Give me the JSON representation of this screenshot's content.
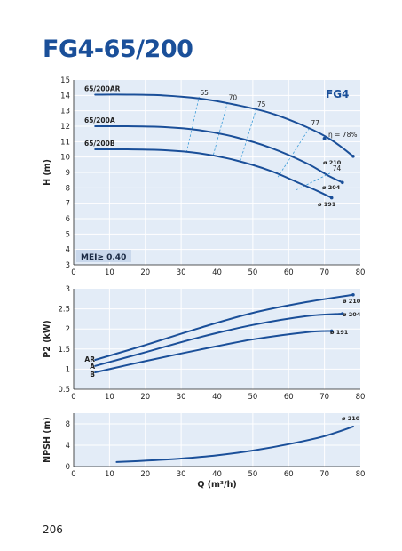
{
  "title": "FG4-65/200",
  "page_number": "206",
  "colors": {
    "title": "#1a4f99",
    "curve": "#1a4f99",
    "efficiency": "#3a9bd8",
    "panel_bg": "#e3ecf7",
    "grid": "#ffffff"
  },
  "chart_data": [
    {
      "type": "line",
      "name": "head",
      "panel_label": "FG4",
      "badge": "MEI≥ 0.40",
      "ylabel": "H (m)",
      "xlim": [
        0,
        80
      ],
      "ylim": [
        3,
        15
      ],
      "x_ticks": [
        0,
        10,
        20,
        30,
        40,
        50,
        60,
        70,
        80
      ],
      "y_ticks": [
        3,
        4,
        5,
        6,
        7,
        8,
        9,
        10,
        11,
        12,
        13,
        14,
        15
      ],
      "series": [
        {
          "name": "65/200AR",
          "end_label": "ø 210",
          "x": [
            6,
            15,
            25,
            35,
            45,
            55,
            65,
            72,
            78
          ],
          "y": [
            14.05,
            14.05,
            14.0,
            13.8,
            13.4,
            12.85,
            11.95,
            11.1,
            10.05
          ]
        },
        {
          "name": "65/200A",
          "end_label": "ø 204",
          "x": [
            6,
            15,
            25,
            35,
            45,
            55,
            65,
            71,
            75
          ],
          "y": [
            12.0,
            12.0,
            11.95,
            11.75,
            11.3,
            10.6,
            9.6,
            8.8,
            8.35
          ]
        },
        {
          "name": "65/200B",
          "end_label": "ø 191",
          "x": [
            6,
            15,
            25,
            35,
            45,
            55,
            63,
            68,
            72
          ],
          "y": [
            10.5,
            10.5,
            10.45,
            10.25,
            9.8,
            9.1,
            8.3,
            7.8,
            7.35
          ]
        }
      ],
      "efficiency": [
        {
          "label": "65",
          "x": [
            31.5,
            35
          ],
          "y": [
            10.3,
            13.9
          ]
        },
        {
          "label": "70",
          "x": [
            39,
            43
          ],
          "y": [
            10.15,
            13.6
          ]
        },
        {
          "label": "75",
          "x": [
            46.5,
            51
          ],
          "y": [
            9.75,
            13.15
          ]
        },
        {
          "label": "77",
          "x": [
            57,
            66
          ],
          "y": [
            8.7,
            11.95
          ]
        },
        {
          "label": "74",
          "x": [
            62,
            72
          ],
          "y": [
            7.85,
            9.0
          ]
        }
      ],
      "eta_label": "η = 78%",
      "eta_point": [
        70,
        11.2
      ]
    },
    {
      "type": "line",
      "name": "power",
      "ylabel": "P2 (kW)",
      "xlim": [
        0,
        80
      ],
      "ylim": [
        0.5,
        3
      ],
      "x_ticks": [
        0,
        10,
        20,
        30,
        40,
        50,
        60,
        70,
        80
      ],
      "y_ticks": [
        0.5,
        1,
        1.5,
        2,
        2.5,
        3
      ],
      "y_tick_labels": [
        "0.5",
        "1",
        "1.5",
        "2",
        "2.5",
        "3"
      ],
      "series": [
        {
          "name": "AR",
          "end_label": "ø 210",
          "x": [
            6,
            20,
            35,
            50,
            65,
            78
          ],
          "y": [
            1.23,
            1.6,
            2.02,
            2.4,
            2.67,
            2.85
          ]
        },
        {
          "name": "A",
          "end_label": "ø 204",
          "x": [
            6,
            20,
            35,
            50,
            65,
            75
          ],
          "y": [
            1.08,
            1.42,
            1.79,
            2.1,
            2.32,
            2.38
          ]
        },
        {
          "name": "B",
          "end_label": "ø 191",
          "x": [
            6,
            20,
            35,
            50,
            65,
            72
          ],
          "y": [
            0.92,
            1.2,
            1.48,
            1.74,
            1.92,
            1.95
          ]
        }
      ]
    },
    {
      "type": "line",
      "name": "npsh",
      "ylabel": "NPSH (m)",
      "xlabel": "Q (m³/h)",
      "xlim": [
        0,
        80
      ],
      "ylim": [
        0,
        10
      ],
      "x_ticks": [
        0,
        10,
        20,
        30,
        40,
        50,
        60,
        70,
        80
      ],
      "y_ticks": [
        0,
        4,
        8
      ],
      "series": [
        {
          "name": "ø 210",
          "end_label": "ø 210",
          "x": [
            12,
            20,
            30,
            40,
            50,
            60,
            70,
            78
          ],
          "y": [
            0.85,
            1.1,
            1.5,
            2.1,
            3.0,
            4.2,
            5.7,
            7.5
          ]
        }
      ]
    }
  ]
}
